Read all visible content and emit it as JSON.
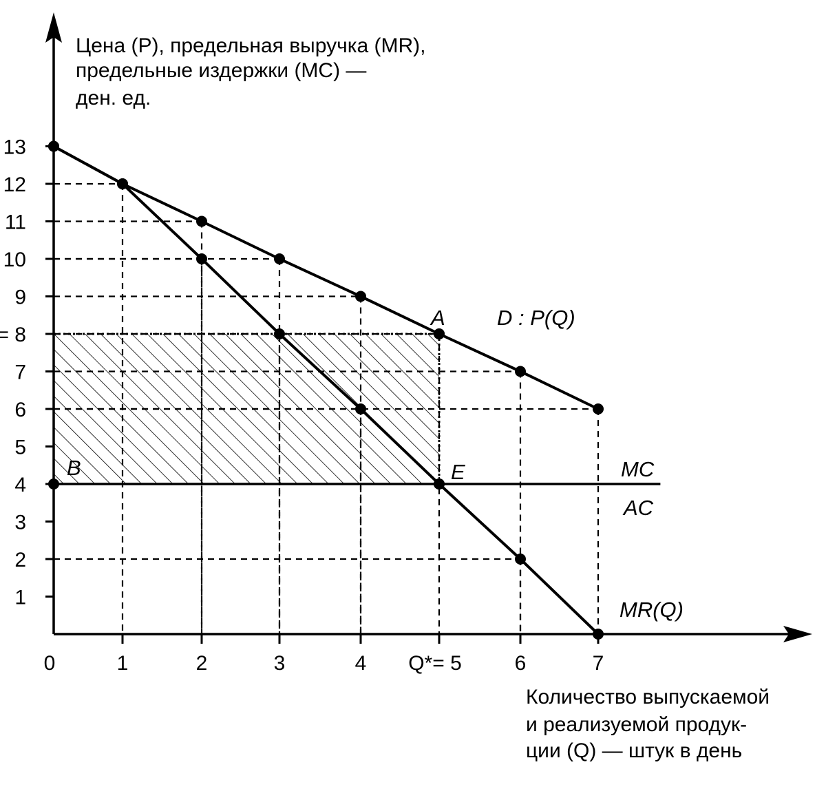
{
  "chart_data": {
    "type": "line",
    "ylabel_lines": [
      "Цена (P), предельная выручка (MR),",
      "предельные издержки  (MC) —",
      "ден.  ед."
    ],
    "xlabel_lines": [
      "Количество выпускаемой",
      "и  реализуемой продук-",
      "ции  (Q) — штук в день"
    ],
    "x_ticks": [
      {
        "value": 0,
        "label": "0"
      },
      {
        "value": 1,
        "label": "1"
      },
      {
        "value": 2,
        "label": "2"
      },
      {
        "value": 3,
        "label": "3"
      },
      {
        "value": 4,
        "label": "4"
      },
      {
        "value": 5,
        "label": "Q*= 5"
      },
      {
        "value": 6,
        "label": "6"
      },
      {
        "value": 7,
        "label": "7"
      }
    ],
    "y_ticks": [
      {
        "value": 1,
        "label": "1"
      },
      {
        "value": 2,
        "label": "2"
      },
      {
        "value": 3,
        "label": "3"
      },
      {
        "value": 4,
        "label": "4"
      },
      {
        "value": 5,
        "label": "5"
      },
      {
        "value": 6,
        "label": "6"
      },
      {
        "value": 7,
        "label": "7"
      },
      {
        "value": 8,
        "label": "= 8"
      },
      {
        "value": 9,
        "label": "9"
      },
      {
        "value": 10,
        "label": "10"
      },
      {
        "value": 11,
        "label": "11"
      },
      {
        "value": 12,
        "label": "12"
      },
      {
        "value": 13,
        "label": "13"
      }
    ],
    "xlim": [
      0,
      8
    ],
    "ylim": [
      0,
      14
    ],
    "series": [
      {
        "name": "D : P(Q)",
        "x": [
          0,
          1,
          2,
          3,
          4,
          5,
          6,
          7
        ],
        "y": [
          13,
          12,
          11,
          10,
          9,
          8,
          7,
          6
        ]
      },
      {
        "name": "MR(Q)",
        "x": [
          0,
          1,
          2,
          3,
          4,
          5,
          6,
          7
        ],
        "y": [
          13,
          12,
          10,
          8,
          6,
          4,
          2,
          0
        ]
      }
    ],
    "mc_line": {
      "label_top": "MC",
      "label_bottom": "AC",
      "y": 4,
      "x_range": [
        0,
        7.8
      ]
    },
    "shaded_area": {
      "x": [
        0,
        5
      ],
      "y": [
        4,
        8
      ],
      "pattern": "diagonal hatch"
    },
    "points": [
      {
        "label": "A",
        "x": 5,
        "y": 8
      },
      {
        "label": "B",
        "x": 0,
        "y": 4
      },
      {
        "label": "E",
        "x": 5,
        "y": 4
      }
    ],
    "guide_lines": [
      {
        "x": 1,
        "y": 12
      },
      {
        "x": 2,
        "y": 11
      },
      {
        "x": 2,
        "y": 10
      },
      {
        "x": 3,
        "y": 10
      },
      {
        "x": 3,
        "y": 8
      },
      {
        "x": 4,
        "y": 9
      },
      {
        "x": 4,
        "y": 6
      },
      {
        "x": 5,
        "y": 8
      },
      {
        "x": 6,
        "y": 7
      },
      {
        "x": 6,
        "y": 2
      },
      {
        "x": 7,
        "y": 6
      }
    ],
    "grid": false
  }
}
